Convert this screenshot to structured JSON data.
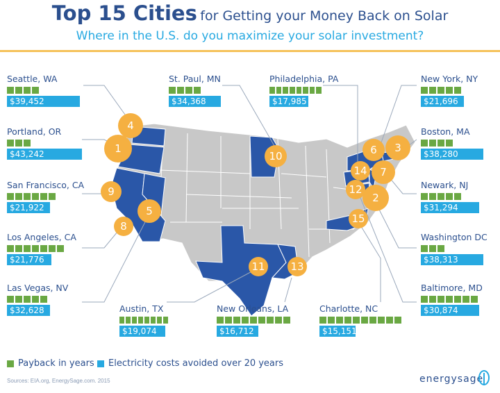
{
  "header": {
    "title_big": "Top 15 Cities",
    "title_small": "for Getting your Money Back on Solar",
    "subtitle": "Where in the U.S. do you maximize your solar investment?"
  },
  "colors": {
    "navy": "#2b4f8e",
    "highlight_state": "#2a57a8",
    "other_state": "#c8c8c8",
    "marker": "#f5b041",
    "payback_green": "#6aa843",
    "cost_blue": "#27a9e1"
  },
  "cities": [
    {
      "name": "Seattle, WA",
      "payback_years": 4,
      "cost": "$39,452",
      "cost_value": 39452,
      "rank": "4"
    },
    {
      "name": "St. Paul, MN",
      "payback_years": 4,
      "cost": "$34,368",
      "cost_value": 34368,
      "rank": "10"
    },
    {
      "name": "Philadelphia, PA",
      "payback_years": 8,
      "cost": "$17,985",
      "cost_value": 17985,
      "rank": "14"
    },
    {
      "name": "New York, NY",
      "payback_years": 5,
      "cost": "$21,696",
      "cost_value": 21696,
      "rank": "6"
    },
    {
      "name": "Portland, OR",
      "payback_years": 3,
      "cost": "$43,242",
      "cost_value": 43242,
      "rank": "1"
    },
    {
      "name": "Boston, MA",
      "payback_years": 4,
      "cost": "$38,280",
      "cost_value": 38280,
      "rank": "3"
    },
    {
      "name": "San Francisco, CA",
      "payback_years": 6,
      "cost": "$21,922",
      "cost_value": 21922,
      "rank": "9"
    },
    {
      "name": "Newark, NJ",
      "payback_years": 5,
      "cost": "$31,294",
      "cost_value": 31294,
      "rank": "7"
    },
    {
      "name": "Los Angeles, CA",
      "payback_years": 7,
      "cost": "$21,776",
      "cost_value": 21776,
      "rank": "8"
    },
    {
      "name": "Washington DC",
      "payback_years": 3,
      "cost": "$38,313",
      "cost_value": 38313,
      "rank": "2"
    },
    {
      "name": "Las Vegas, NV",
      "payback_years": 5,
      "cost": "$32,628",
      "cost_value": 32628,
      "rank": "5"
    },
    {
      "name": "Austin, TX",
      "payback_years": 8,
      "cost": "$19,074",
      "cost_value": 19074,
      "rank": "11"
    },
    {
      "name": "New Orleans, LA",
      "payback_years": 9,
      "cost": "$16,712",
      "cost_value": 16712,
      "rank": "13"
    },
    {
      "name": "Charlotte, NC",
      "payback_years": 10,
      "cost": "$15,151",
      "cost_value": 15151,
      "rank": "15"
    },
    {
      "name": "Baltimore, MD",
      "payback_years": 7,
      "cost": "$30,874",
      "cost_value": 30874,
      "rank": "12"
    }
  ],
  "legend": {
    "payback": "Payback in years",
    "cost": "Electricity costs avoided over 20 years"
  },
  "source": "Sources: EIA.org, EnergySage.com. 2015",
  "brand": "energysage"
}
